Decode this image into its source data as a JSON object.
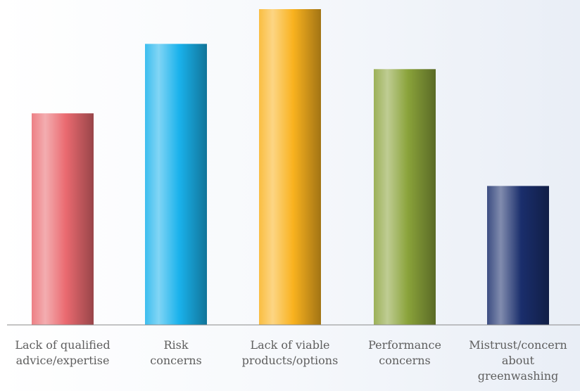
{
  "chart_data": {
    "type": "bar",
    "title": "",
    "xlabel": "",
    "ylabel": "",
    "ylim": [
      0,
      100
    ],
    "grid": false,
    "categories": [
      "Lack of qualified advice/expertise",
      "Risk concerns",
      "Lack of viable products/options",
      "Performance concerns",
      "Mistrust/concern about greenwashing"
    ],
    "category_lines": [
      [
        "Lack of qualified",
        "advice/expertise"
      ],
      [
        "Risk",
        "concerns"
      ],
      [
        "Lack of viable",
        "products/options"
      ],
      [
        "Performance",
        "concerns"
      ],
      [
        "Mistrust/concern",
        "about",
        "greenwashing"
      ]
    ],
    "values": [
      67,
      89,
      100,
      81,
      44
    ],
    "colors": [
      "#ea6a70",
      "#1ab2ec",
      "#f9b21f",
      "#8aa33a",
      "#1a2e6c"
    ]
  }
}
